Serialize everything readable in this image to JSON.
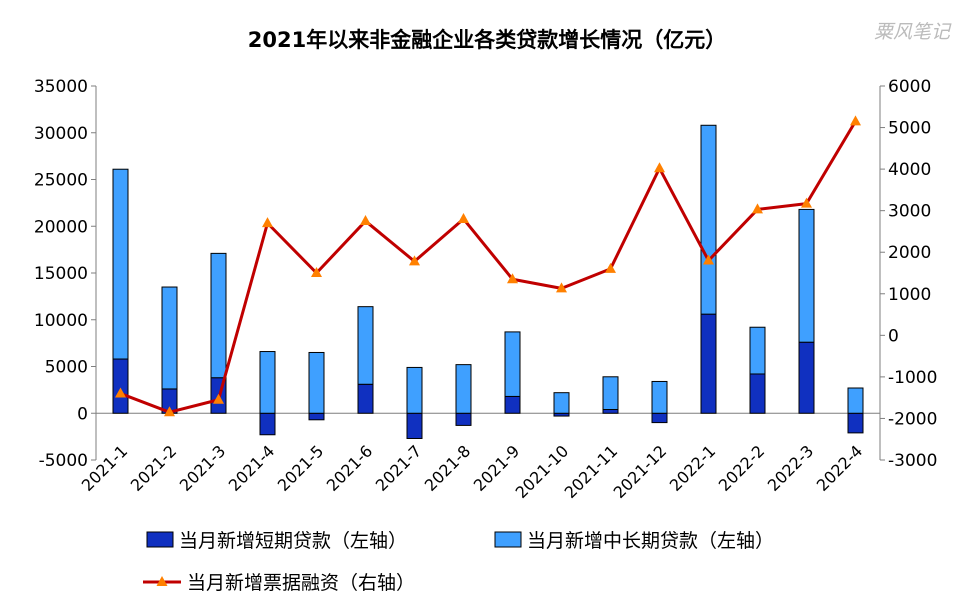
{
  "chart_data": {
    "type": "bar",
    "title": "2021年以来非金融企业各类贷款增长情况（亿元）",
    "watermark": "粟风笔记",
    "categories": [
      "2021-1",
      "2021-2",
      "2021-3",
      "2021-4",
      "2021-5",
      "2021-6",
      "2021-7",
      "2021-8",
      "2021-9",
      "2021-10",
      "2021-11",
      "2021-12",
      "2022-1",
      "2022-2",
      "2022-3",
      "2022-4"
    ],
    "y_left": {
      "min": -5000,
      "max": 35000,
      "step": 5000,
      "ticks": [
        "-5000",
        "0",
        "5000",
        "10000",
        "15000",
        "20000",
        "25000",
        "30000",
        "35000"
      ]
    },
    "y_right": {
      "min": -3000,
      "max": 6000,
      "step": 1000,
      "ticks": [
        "-3000",
        "-2000",
        "-1000",
        "0",
        "1000",
        "2000",
        "3000",
        "4000",
        "5000",
        "6000"
      ]
    },
    "series": [
      {
        "name": "当月新增短期贷款（左轴）",
        "axis": "left",
        "kind": "stacked-bar",
        "color": "#1030c0",
        "values": [
          5800,
          2600,
          3800,
          -2300,
          -700,
          3100,
          -2700,
          -1300,
          1800,
          -300,
          400,
          -1000,
          10600,
          4200,
          7600,
          -2100
        ]
      },
      {
        "name": "当月新增中长期贷款（左轴）",
        "axis": "left",
        "kind": "stacked-bar",
        "color": "#3fa0ff",
        "values": [
          20300,
          10900,
          13300,
          6600,
          6500,
          8300,
          4900,
          5200,
          6900,
          2200,
          3500,
          3400,
          20200,
          5000,
          14200,
          2700
        ]
      },
      {
        "name": "当月新增票据融资（右轴）",
        "axis": "right",
        "kind": "line",
        "color": "#c00000",
        "marker_color": "#ff8000",
        "values": [
          -1400,
          -1850,
          -1550,
          2700,
          1500,
          2750,
          1780,
          2800,
          1350,
          1130,
          1600,
          4020,
          1800,
          3030,
          3170,
          5150
        ]
      }
    ],
    "legend_position": "bottom",
    "grid": false
  }
}
